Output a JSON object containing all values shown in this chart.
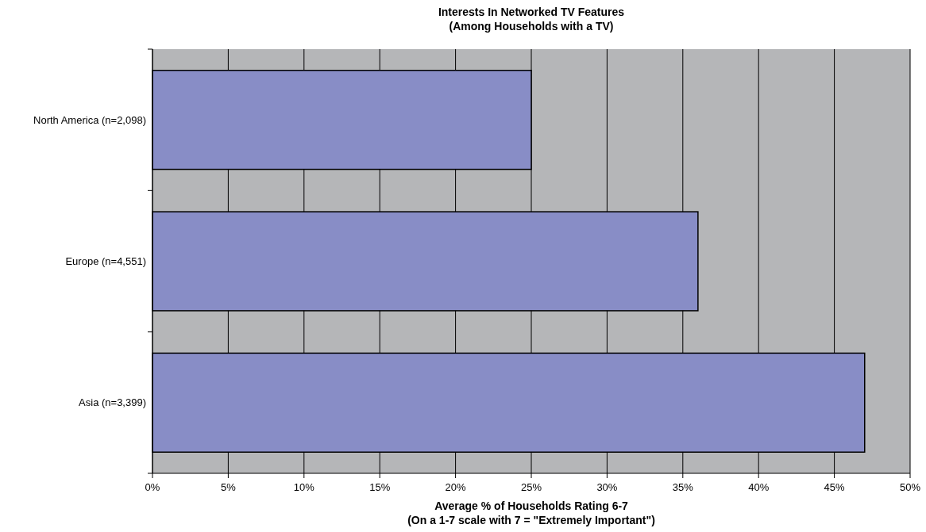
{
  "chart_data": {
    "type": "bar",
    "orientation": "horizontal",
    "title": "Interests In Networked TV Features",
    "subtitle": "(Among Households with a TV)",
    "xlabel": "Average % of Households Rating 6-7",
    "annotations": [
      "(On a 1-7 scale with 7 = \"Extremely Important\")"
    ],
    "categories": [
      "North America (n=2,098)",
      "Europe (n=4,551)",
      "Asia (n=3,399)"
    ],
    "values": [
      25,
      36,
      47
    ],
    "color": "#888dc6",
    "xlim": [
      0,
      50
    ],
    "xticks": [
      {
        "value": 0,
        "label": "0%"
      },
      {
        "value": 5,
        "label": "5%"
      },
      {
        "value": 10,
        "label": "10%"
      },
      {
        "value": 15,
        "label": "15%"
      },
      {
        "value": 20,
        "label": "20%"
      },
      {
        "value": 25,
        "label": "25%"
      },
      {
        "value": 30,
        "label": "30%"
      },
      {
        "value": 35,
        "label": "35%"
      },
      {
        "value": 40,
        "label": "40%"
      },
      {
        "value": 45,
        "label": "45%"
      },
      {
        "value": 50,
        "label": "50%"
      }
    ],
    "grid": "x"
  }
}
